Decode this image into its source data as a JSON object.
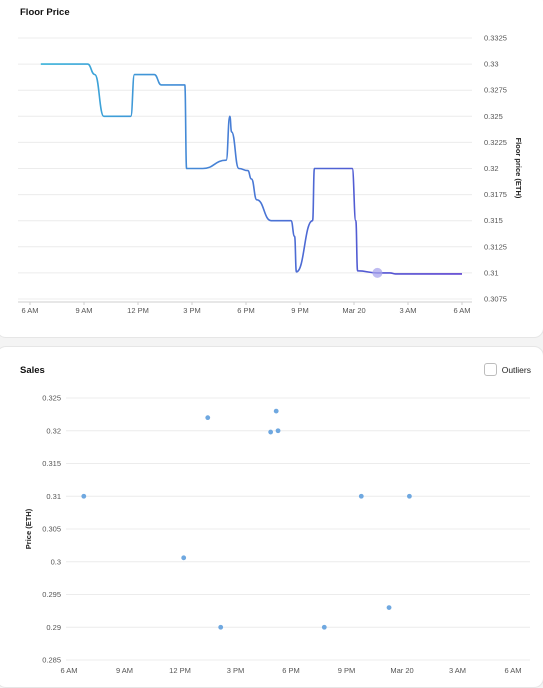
{
  "floor_price": {
    "title": "Floor Price"
  },
  "sales": {
    "title": "Sales",
    "outliers_label": "Outliers",
    "outliers_checked": false
  },
  "chart_data": [
    {
      "type": "line",
      "title": "Floor Price",
      "ylabel": "Floor price (ETH)",
      "xlabel": "",
      "y_axis_position": "right",
      "ylim": [
        0.3075,
        0.3325
      ],
      "yticks": [
        "0.3325",
        "0.33",
        "0.3275",
        "0.325",
        "0.3225",
        "0.32",
        "0.3175",
        "0.315",
        "0.3125",
        "0.31",
        "0.3075"
      ],
      "xticks": [
        "6 AM",
        "9 AM",
        "12 PM",
        "3 PM",
        "6 PM",
        "9 PM",
        "Mar 20",
        "3 AM",
        "6 AM"
      ],
      "x_hours_range": [
        0,
        24
      ],
      "grid": true,
      "line_color_start": "#38b2d9",
      "line_color_end": "#5a3fd1",
      "x": [
        0.6,
        3.2,
        3.6,
        4.1,
        5.6,
        5.8,
        6.9,
        7.3,
        8.6,
        8.7,
        9.6,
        10.9,
        11.1,
        11.2,
        11.6,
        12.1,
        12.3,
        12.6,
        13.4,
        14.0,
        14.5,
        14.7,
        14.8,
        15.7,
        15.8,
        16.2,
        17.9,
        18.1,
        18.2,
        19.3,
        20.0,
        20.3,
        24.0
      ],
      "y": [
        0.33,
        0.33,
        0.329,
        0.325,
        0.325,
        0.329,
        0.329,
        0.328,
        0.328,
        0.32,
        0.32,
        0.3208,
        0.325,
        0.3235,
        0.32,
        0.3198,
        0.319,
        0.317,
        0.315,
        0.315,
        0.315,
        0.3135,
        0.3101,
        0.315,
        0.32,
        0.32,
        0.32,
        0.315,
        0.3102,
        0.31,
        0.31,
        0.3099,
        0.3099
      ],
      "highlight_point": {
        "x": 19.3,
        "y": 0.31
      }
    },
    {
      "type": "scatter",
      "title": "Sales",
      "ylabel": "Price (ETH)",
      "xlabel": "",
      "ylim": [
        0.285,
        0.325
      ],
      "yticks": [
        "0.325",
        "0.32",
        "0.315",
        "0.31",
        "0.305",
        "0.3",
        "0.295",
        "0.29",
        "0.285"
      ],
      "xticks": [
        "6 AM",
        "9 AM",
        "12 PM",
        "3 PM",
        "6 PM",
        "9 PM",
        "Mar 20",
        "3 AM",
        "6 AM"
      ],
      "x_hours_range": [
        0,
        24
      ],
      "grid": true,
      "point_color": "#6fa8e0",
      "points": [
        {
          "x": 0.8,
          "y": 0.31
        },
        {
          "x": 6.2,
          "y": 0.3006
        },
        {
          "x": 7.5,
          "y": 0.322
        },
        {
          "x": 8.2,
          "y": 0.29
        },
        {
          "x": 10.9,
          "y": 0.3198
        },
        {
          "x": 11.2,
          "y": 0.323
        },
        {
          "x": 11.3,
          "y": 0.32
        },
        {
          "x": 13.8,
          "y": 0.29
        },
        {
          "x": 15.8,
          "y": 0.31
        },
        {
          "x": 17.3,
          "y": 0.293
        },
        {
          "x": 18.4,
          "y": 0.31
        }
      ]
    }
  ]
}
